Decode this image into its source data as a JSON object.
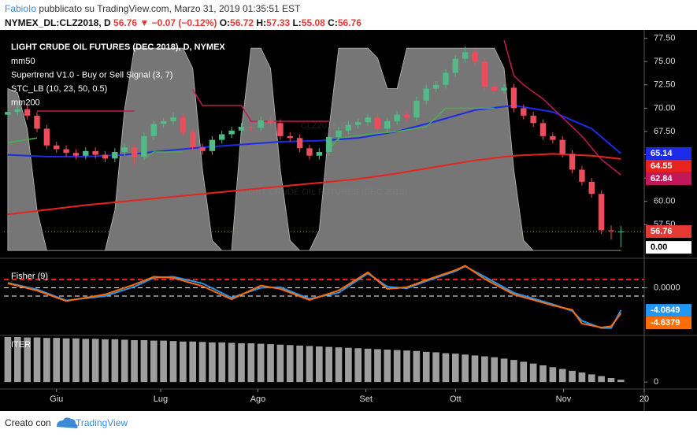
{
  "header": {
    "author": "FabioIo",
    "published": "pubblicato su TradingView.com, Marzo 31, 2019 01:35:51 EST",
    "symbol": "NYMEX_DL:CLZ2018, D",
    "last": "56.76",
    "change": "▼ −0.07 (−0.12%)",
    "ohlc": [
      [
        "O:",
        "56.72"
      ],
      [
        "H:",
        "57.33"
      ],
      [
        "L:",
        "55.08"
      ],
      [
        "C:",
        "56.76"
      ]
    ]
  },
  "footer": {
    "made_with": "Creato con",
    "brand": "TradingView"
  },
  "chart_data": [
    {
      "type": "candlestick",
      "title": "LIGHT CRUDE OIL FUTURES (DEC 2018), D, NYMEX",
      "watermark": "CLZ2018, D",
      "watermark_subtitle": "LIGHT CRUDE OIL FUTURES (DEC 2018)",
      "up_color": "#53b987",
      "down_color": "#eb4d5c",
      "x": [
        0,
        1,
        2,
        3,
        4,
        5,
        6,
        7,
        8,
        9,
        10,
        11,
        12,
        13,
        14,
        15,
        16,
        17,
        18,
        19,
        20,
        21,
        22,
        23,
        24,
        25,
        26,
        27,
        28,
        29,
        30,
        31,
        32,
        33,
        34,
        35,
        36,
        37,
        38,
        39,
        40,
        41,
        42,
        43,
        44,
        45,
        46,
        47,
        48,
        49,
        50,
        51,
        52,
        53,
        54,
        55,
        56,
        57,
        58,
        59,
        60,
        61,
        62,
        63
      ],
      "open": [
        69.3,
        69.6,
        69.9,
        69.2,
        67.8,
        66.0,
        65.6,
        65.2,
        64.9,
        65.4,
        65.0,
        64.6,
        65.3,
        65.8,
        64.8,
        67.0,
        68.3,
        68.6,
        69.0,
        67.4,
        65.8,
        65.4,
        66.6,
        67.2,
        67.6,
        68.0,
        67.9,
        68.7,
        68.4,
        67.0,
        66.8,
        65.7,
        64.9,
        65.3,
        66.9,
        67.6,
        68.2,
        68.5,
        69.0,
        67.8,
        68.6,
        69.3,
        69.0,
        70.8,
        72.1,
        72.5,
        73.8,
        75.3,
        76.0,
        75.0,
        72.3,
        71.9,
        72.2,
        70.0,
        69.2,
        68.4,
        67.0,
        66.6,
        65.1,
        63.4,
        62.1,
        60.8,
        56.9,
        56.72
      ],
      "high": [
        70.0,
        70.3,
        70.3,
        69.6,
        68.2,
        66.4,
        66.0,
        65.6,
        65.8,
        65.8,
        65.4,
        65.7,
        66.2,
        66.2,
        67.4,
        68.7,
        69.0,
        69.6,
        69.4,
        67.8,
        66.2,
        67.0,
        67.6,
        68.0,
        68.4,
        68.4,
        69.1,
        69.1,
        68.8,
        67.4,
        67.2,
        66.1,
        65.7,
        67.3,
        68.0,
        68.6,
        68.9,
        69.4,
        69.4,
        69.0,
        69.7,
        69.7,
        71.2,
        72.5,
        72.9,
        74.2,
        75.7,
        76.6,
        76.4,
        75.4,
        72.7,
        72.6,
        72.6,
        70.4,
        69.6,
        68.8,
        67.4,
        67.0,
        65.5,
        63.8,
        62.5,
        61.2,
        57.4,
        57.33
      ],
      "low": [
        68.9,
        69.2,
        68.8,
        67.4,
        65.6,
        65.2,
        64.8,
        64.5,
        64.5,
        64.6,
        64.2,
        64.2,
        64.9,
        63.9,
        64.4,
        66.6,
        67.9,
        68.2,
        67.0,
        65.4,
        65.0,
        65.0,
        66.2,
        66.8,
        67.2,
        67.5,
        67.5,
        68.0,
        66.6,
        66.4,
        65.3,
        64.5,
        64.5,
        64.9,
        66.5,
        67.2,
        67.8,
        68.1,
        67.4,
        67.4,
        68.2,
        68.6,
        68.6,
        70.4,
        71.7,
        72.1,
        73.4,
        74.9,
        74.6,
        71.9,
        71.5,
        71.5,
        69.6,
        68.8,
        68.0,
        66.6,
        66.2,
        64.7,
        63.0,
        61.7,
        60.4,
        56.5,
        55.9,
        55.08
      ],
      "close": [
        69.6,
        69.9,
        69.2,
        67.8,
        66.0,
        65.6,
        65.2,
        64.9,
        65.4,
        65.0,
        64.6,
        65.3,
        65.8,
        64.8,
        67.0,
        68.3,
        68.6,
        69.0,
        67.4,
        65.8,
        65.4,
        66.6,
        67.2,
        67.6,
        68.0,
        67.9,
        68.7,
        68.4,
        67.0,
        66.8,
        65.7,
        64.9,
        65.3,
        66.9,
        67.6,
        68.2,
        68.5,
        69.0,
        67.8,
        68.6,
        69.3,
        69.0,
        70.8,
        72.1,
        72.5,
        73.8,
        75.3,
        76.0,
        75.0,
        72.3,
        71.9,
        72.2,
        70.0,
        69.2,
        68.4,
        67.0,
        66.6,
        65.1,
        63.4,
        62.1,
        60.8,
        56.9,
        56.8,
        56.76
      ],
      "overlays": [
        {
          "name": "mm50",
          "kind": "line",
          "color": "#1c2be6",
          "x": [
            0,
            4,
            8,
            12,
            16,
            20,
            24,
            28,
            32,
            36,
            40,
            44,
            48,
            52,
            56,
            60,
            63
          ],
          "values": [
            65.0,
            64.8,
            64.8,
            65.0,
            65.4,
            65.8,
            66.1,
            66.4,
            66.5,
            66.8,
            67.5,
            68.6,
            69.8,
            70.3,
            69.6,
            67.8,
            65.14
          ]
        },
        {
          "name": "Supertrend V1.0 - Buy or Sell Signal (3, 7)",
          "kind": "supertrend",
          "up": {
            "color": "#4caf50",
            "x": [
              0,
              3,
              4,
              14,
              15,
              18,
              19,
              33,
              34,
              37,
              40,
              43,
              45,
              48,
              50
            ],
            "values": [
              66.3,
              66.8,
              null,
              64.6,
              65.3,
              65.3,
              null,
              65.6,
              66.8,
              67.2,
              67.5,
              68.0,
              70.0,
              70.0,
              70.0
            ]
          },
          "down": {
            "color": "#c2185b",
            "x": [
              3,
              13,
              14,
              19,
              20,
              24,
              25,
              33,
              34,
              51,
              52,
              53,
              55,
              57,
              59,
              61,
              63
            ],
            "values": [
              69.7,
              69.7,
              null,
              72.0,
              70.3,
              70.3,
              68.6,
              68.6,
              null,
              77.3,
              73.5,
              72.5,
              71.0,
              69.0,
              67.0,
              64.5,
              62.84
            ]
          }
        },
        {
          "name": "STC_LB (10, 23, 50, 0.5)",
          "kind": "area",
          "axis": "y2",
          "color": "#9e9e9e",
          "last_label": "0.00",
          "values": [
            80,
            78,
            60,
            20,
            0,
            0,
            0,
            0,
            0,
            0,
            0,
            20,
            70,
            100,
            100,
            100,
            100,
            100,
            100,
            90,
            40,
            5,
            0,
            0,
            60,
            100,
            100,
            90,
            40,
            5,
            0,
            0,
            10,
            60,
            100,
            100,
            100,
            100,
            95,
            80,
            80,
            100,
            100,
            100,
            100,
            100,
            100,
            100,
            100,
            100,
            100,
            90,
            40,
            5,
            0,
            0,
            0,
            0,
            0,
            0,
            0,
            0,
            0,
            0
          ]
        },
        {
          "name": "mm200",
          "kind": "line",
          "color": "#e8231f",
          "x": [
            0,
            4,
            8,
            12,
            16,
            20,
            24,
            28,
            32,
            36,
            40,
            44,
            48,
            52,
            56,
            60,
            63
          ],
          "values": [
            58.6,
            59.1,
            59.6,
            60.0,
            60.4,
            60.8,
            61.2,
            61.6,
            62.0,
            62.4,
            63.0,
            63.7,
            64.4,
            64.9,
            65.1,
            64.9,
            64.55
          ]
        }
      ],
      "ylim": [
        54.4,
        78.4
      ],
      "y2lim": [
        -1.5,
        109
      ],
      "yticks": [
        {
          "value": 57.5,
          "label": "57.50"
        },
        {
          "value": 60,
          "label": "60.00"
        },
        {
          "value": 62.5,
          "label": "62.50"
        },
        {
          "value": 65,
          "label": "65.00"
        },
        {
          "value": 67.5,
          "label": "67.50"
        },
        {
          "value": 70,
          "label": "70.00"
        },
        {
          "value": 72.5,
          "label": "72.50"
        },
        {
          "value": 75,
          "label": "75.00"
        },
        {
          "value": 77.5,
          "label": "77.50"
        }
      ],
      "xlim": [
        -0.4,
        65.4
      ],
      "xticks": [
        {
          "value": 5,
          "label": "Giu"
        },
        {
          "value": 15.7,
          "label": "Lug"
        },
        {
          "value": 25.7,
          "label": "Ago"
        },
        {
          "value": 36.8,
          "label": "Set"
        },
        {
          "value": 46,
          "label": "Ott"
        },
        {
          "value": 57.1,
          "label": "Nov"
        },
        {
          "value": 65.4,
          "label": "20"
        }
      ]
    },
    {
      "type": "line",
      "title": "Fisher (9)",
      "ylim": [
        -8.5,
        4.5
      ],
      "yticks": [
        {
          "value": 0,
          "label": "0.0000"
        }
      ],
      "levels": [
        1.5,
        0,
        -1.5
      ],
      "level_colors": [
        "#e91e1e",
        "#ffffff",
        "#ffffff"
      ],
      "series": [
        {
          "color": "#2196f3",
          "x": [
            0,
            3,
            6,
            10,
            13,
            15,
            17,
            20,
            23,
            26,
            28,
            31,
            34,
            37,
            39,
            41,
            43,
            46,
            47,
            49,
            52,
            56,
            58,
            59,
            61,
            62,
            63
          ],
          "values": [
            0.9,
            -0.3,
            -2.3,
            -1.5,
            0.2,
            1.8,
            2.0,
            0.8,
            -1.8,
            0.0,
            0.1,
            -2.0,
            -0.9,
            2.6,
            0.2,
            -0.1,
            1.2,
            3.0,
            3.9,
            2.0,
            -0.9,
            -3.0,
            -4.2,
            -6.0,
            -7.3,
            -7.3,
            -4.0849
          ]
        },
        {
          "color": "#ff6d00",
          "x": [
            0,
            3,
            6,
            10,
            13,
            15,
            17,
            20,
            23,
            26,
            28,
            31,
            34,
            37,
            39,
            41,
            43,
            46,
            47,
            49,
            52,
            56,
            58,
            59,
            61,
            62,
            63
          ],
          "values": [
            0.8,
            -0.5,
            -2.4,
            -1.2,
            0.6,
            2.0,
            1.8,
            0.3,
            -2.1,
            0.4,
            -0.2,
            -2.2,
            -0.5,
            2.8,
            -0.2,
            0.1,
            1.4,
            3.2,
            4.0,
            1.6,
            -1.2,
            -3.2,
            -4.0,
            -6.5,
            -7.2,
            -7.0,
            -4.6379
          ]
        }
      ]
    },
    {
      "type": "bar",
      "title": "ITER",
      "color": "#9e9e9e",
      "ylim": [
        -12,
        100
      ],
      "yticks": [
        0
      ],
      "values": [
        100,
        100,
        99,
        99,
        98,
        98,
        97,
        97,
        96,
        96,
        95,
        95,
        94,
        93,
        93,
        92,
        92,
        91,
        90,
        90,
        89,
        88,
        88,
        87,
        86,
        86,
        85,
        84,
        83,
        82,
        81,
        80,
        79,
        78,
        77,
        76,
        75,
        74,
        73,
        72,
        71,
        70,
        69,
        67,
        66,
        64,
        63,
        61,
        59,
        57,
        55,
        52,
        49,
        45,
        41,
        37,
        33,
        29,
        25,
        21,
        17,
        13,
        9,
        5
      ]
    }
  ]
}
